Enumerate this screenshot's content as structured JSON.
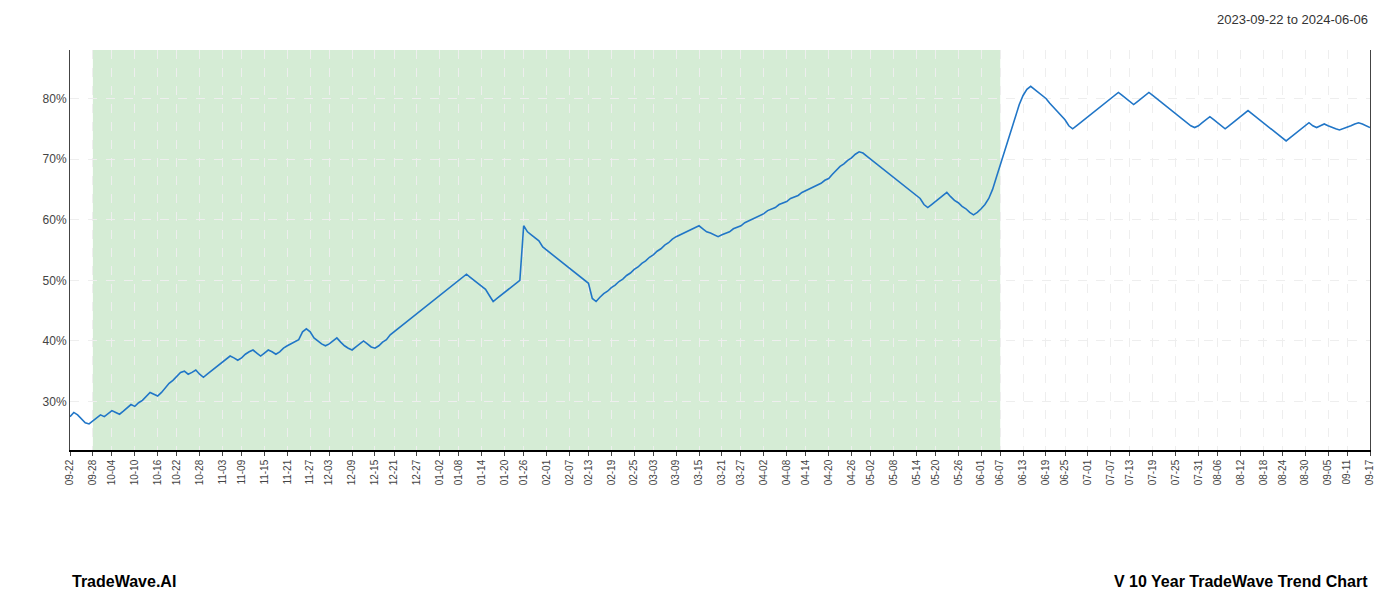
{
  "chart_data": {
    "type": "line",
    "subtitle": "2023-09-22 to 2024-06-06",
    "annotations": [
      "TradeWave.AI",
      "V 10 Year TradeWave Trend Chart"
    ],
    "color": "#2176c7",
    "grid": true,
    "ylim": [
      22,
      88
    ],
    "yticks": [
      {
        "value": 30,
        "label": "30%"
      },
      {
        "value": 40,
        "label": "40%"
      },
      {
        "value": 50,
        "label": "50%"
      },
      {
        "value": 60,
        "label": "60%"
      },
      {
        "value": 70,
        "label": "70%"
      },
      {
        "value": 80,
        "label": "80%"
      }
    ],
    "shaded_region": {
      "start": "09-28",
      "end": "06-07",
      "color": "#d5ecd5"
    },
    "categories": [
      "09-22",
      null,
      null,
      null,
      null,
      null,
      "09-28",
      null,
      null,
      null,
      null,
      "10-04",
      null,
      null,
      null,
      null,
      null,
      "10-10",
      null,
      null,
      null,
      null,
      null,
      "10-16",
      null,
      null,
      null,
      null,
      "10-22",
      null,
      null,
      null,
      null,
      null,
      "10-28",
      null,
      null,
      null,
      null,
      null,
      "11-03",
      null,
      null,
      null,
      null,
      "11-09",
      null,
      null,
      null,
      null,
      null,
      "11-15",
      null,
      null,
      null,
      null,
      null,
      "11-21",
      null,
      null,
      null,
      null,
      null,
      "11-27",
      null,
      null,
      null,
      null,
      "12-03",
      null,
      null,
      null,
      null,
      null,
      "12-09",
      null,
      null,
      null,
      null,
      null,
      "12-15",
      null,
      null,
      null,
      null,
      "12-21",
      null,
      null,
      null,
      null,
      null,
      "12-27",
      null,
      null,
      null,
      null,
      null,
      "01-02",
      null,
      null,
      null,
      null,
      "01-08",
      null,
      null,
      null,
      null,
      null,
      "01-14",
      null,
      null,
      null,
      null,
      null,
      "01-20",
      null,
      null,
      null,
      null,
      "01-26",
      null,
      null,
      null,
      null,
      null,
      "02-01",
      null,
      null,
      null,
      null,
      null,
      "02-07",
      null,
      null,
      null,
      null,
      "02-13",
      null,
      null,
      null,
      null,
      null,
      "02-19",
      null,
      null,
      null,
      null,
      null,
      "02-25",
      null,
      null,
      null,
      null,
      "03-03",
      null,
      null,
      null,
      null,
      null,
      "03-09",
      null,
      null,
      null,
      null,
      null,
      "03-15",
      null,
      null,
      null,
      null,
      null,
      "03-21",
      null,
      null,
      null,
      null,
      "03-27",
      null,
      null,
      null,
      null,
      null,
      "04-02",
      null,
      null,
      null,
      null,
      null,
      "04-08",
      null,
      null,
      null,
      null,
      "04-14",
      null,
      null,
      null,
      null,
      null,
      "04-20",
      null,
      null,
      null,
      null,
      null,
      "04-26",
      null,
      null,
      null,
      null,
      "05-02",
      null,
      null,
      null,
      null,
      null,
      "05-08",
      null,
      null,
      null,
      null,
      null,
      "05-14",
      null,
      null,
      null,
      null,
      "05-20",
      null,
      null,
      null,
      null,
      null,
      "05-26",
      null,
      null,
      null,
      null,
      null,
      "06-01",
      null,
      null,
      null,
      null,
      "06-07",
      null,
      null,
      null,
      null,
      null,
      "06-13",
      null,
      null,
      null,
      null,
      null,
      "06-19",
      null,
      null,
      null,
      null,
      "06-25",
      null,
      null,
      null,
      null,
      null,
      "07-01",
      null,
      null,
      null,
      null,
      null,
      "07-07",
      null,
      null,
      null,
      null,
      "07-13",
      null,
      null,
      null,
      null,
      null,
      "07-19",
      null,
      null,
      null,
      null,
      null,
      "07-25",
      null,
      null,
      null,
      null,
      null,
      "07-31",
      null,
      null,
      null,
      null,
      "08-06",
      null,
      null,
      null,
      null,
      null,
      "08-12",
      null,
      null,
      null,
      null,
      null,
      "08-18",
      null,
      null,
      null,
      null,
      "08-24",
      null,
      null,
      null,
      null,
      null,
      "08-30",
      null,
      null,
      null,
      null,
      null,
      "09-05",
      null,
      null,
      null,
      null,
      "09-11",
      null,
      null,
      null,
      null,
      null,
      "09-17"
    ],
    "values": [
      27.5,
      28.2,
      27.8,
      27.1,
      26.5,
      26.3,
      26.8,
      27.2,
      27.8,
      27.5,
      28.0,
      28.5,
      28.2,
      27.9,
      28.4,
      29.0,
      29.5,
      29.2,
      29.8,
      30.2,
      30.8,
      31.5,
      31.2,
      30.9,
      31.5,
      32.2,
      33.0,
      33.5,
      34.2,
      34.8,
      35.0,
      34.5,
      34.8,
      35.2,
      34.5,
      34.0,
      34.5,
      35.0,
      35.5,
      36.0,
      36.5,
      37.0,
      37.5,
      37.2,
      36.8,
      37.2,
      37.8,
      38.2,
      38.5,
      38.0,
      37.5,
      38.0,
      38.5,
      38.2,
      37.8,
      38.2,
      38.8,
      39.2,
      39.5,
      39.8,
      40.2,
      41.5,
      42.0,
      41.5,
      40.5,
      40.0,
      39.5,
      39.2,
      39.5,
      40.0,
      40.5,
      39.8,
      39.2,
      38.8,
      38.5,
      39.0,
      39.5,
      40.0,
      39.5,
      39.0,
      38.8,
      39.2,
      39.8,
      40.2,
      41.0,
      41.5,
      42.0,
      42.5,
      43.0,
      43.5,
      44.0,
      44.5,
      45.0,
      45.5,
      46.0,
      46.5,
      47.0,
      47.5,
      48.0,
      48.5,
      49.0,
      49.5,
      50.0,
      50.5,
      51.0,
      50.5,
      50.0,
      49.5,
      49.0,
      48.5,
      47.5,
      46.5,
      47.0,
      47.5,
      48.0,
      48.5,
      49.0,
      49.5,
      50.0,
      59.0,
      58.0,
      57.5,
      57.0,
      56.5,
      55.5,
      55.0,
      54.5,
      54.0,
      53.5,
      53.0,
      52.5,
      52.0,
      51.5,
      51.0,
      50.5,
      50.0,
      49.5,
      47.0,
      46.5,
      47.2,
      47.8,
      48.2,
      48.8,
      49.2,
      49.8,
      50.2,
      50.8,
      51.2,
      51.8,
      52.2,
      52.8,
      53.2,
      53.8,
      54.2,
      54.8,
      55.2,
      55.8,
      56.2,
      56.8,
      57.2,
      57.5,
      57.8,
      58.2,
      58.5,
      58.8,
      59.0,
      58.5,
      58.0,
      57.8,
      57.5,
      57.2,
      57.5,
      57.8,
      58.0,
      58.5,
      58.8,
      59.0,
      59.5,
      59.8,
      60.2,
      60.5,
      60.8,
      61.0,
      61.5,
      61.8,
      62.0,
      62.5,
      62.8,
      63.0,
      63.5,
      63.8,
      64.0,
      64.5,
      64.8,
      65.2,
      65.5,
      65.8,
      66.0,
      66.5,
      66.8,
      67.5,
      68.2,
      68.8,
      69.2,
      69.8,
      70.2,
      70.8,
      71.2,
      71.0,
      70.5,
      70.0,
      69.5,
      69.0,
      68.5,
      68.0,
      67.5,
      67.0,
      66.5,
      66.0,
      65.5,
      65.0,
      64.5,
      64.0,
      63.5,
      62.5,
      62.0,
      62.5,
      63.0,
      63.5,
      64.0,
      64.5,
      63.8,
      63.2,
      62.8,
      62.2,
      61.8,
      61.2,
      60.8,
      61.2,
      61.8,
      62.5,
      63.5,
      65.0,
      67.0,
      69.0,
      71.0,
      73.0,
      75.0,
      77.0,
      79.0,
      80.5,
      81.5,
      82.0,
      81.5,
      81.0,
      80.5,
      80.0,
      79.2,
      78.5,
      77.8,
      77.2,
      76.5,
      75.5,
      75.0,
      75.5,
      76.0,
      76.5,
      77.0,
      77.5,
      78.0,
      78.5,
      79.0,
      79.5,
      80.0,
      80.5,
      81.0,
      80.5,
      80.0,
      79.5,
      79.0,
      79.5,
      80.0,
      80.5,
      81.0,
      80.5,
      80.0,
      79.5,
      79.0,
      78.5,
      78.0,
      77.5,
      77.0,
      76.5,
      76.0,
      75.5,
      75.2,
      75.5,
      76.0,
      76.5,
      77.0,
      76.5,
      76.0,
      75.5,
      75.0,
      75.5,
      76.0,
      76.5,
      77.0,
      77.5,
      78.0,
      77.5,
      77.0,
      76.5,
      76.0,
      75.5,
      75.0,
      74.5,
      74.0,
      73.5,
      73.0,
      73.5,
      74.0,
      74.5,
      75.0,
      75.5,
      76.0,
      75.5,
      75.2,
      75.5,
      75.8,
      75.5,
      75.2,
      75.0,
      74.8,
      75.0,
      75.2,
      75.5,
      75.8,
      76.0,
      75.8,
      75.5,
      75.2
    ]
  }
}
